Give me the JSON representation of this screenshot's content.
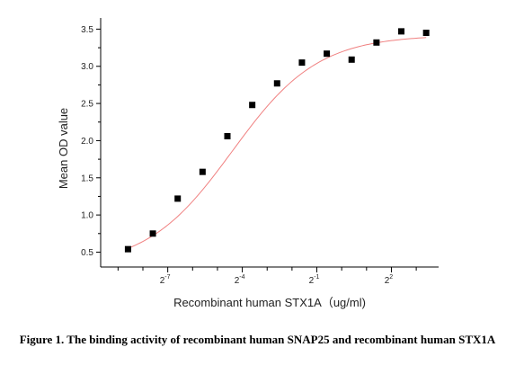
{
  "chart_data": {
    "type": "scatter",
    "ylabel": "Mean OD value",
    "xlabel": "Recombinant human  STX1A（ug/ml)",
    "x_scale": "log2",
    "xlim_log2": [
      -9.7,
      3.9
    ],
    "ylim": [
      0.3,
      3.65
    ],
    "y_ticks": [
      "0.5",
      "1.0",
      "1.5",
      "2.0",
      "2.5",
      "3.0",
      "3.5"
    ],
    "x_tick_labels": [
      {
        "base": "2",
        "exp": "-7"
      },
      {
        "base": "2",
        "exp": "-4"
      },
      {
        "base": "2",
        "exp": "-1"
      },
      {
        "base": "2",
        "exp": "2"
      }
    ],
    "x_log2": [
      -8.6,
      -7.6,
      -6.6,
      -5.6,
      -4.6,
      -3.6,
      -2.6,
      -1.6,
      -0.6,
      0.4,
      1.4,
      2.4,
      3.4
    ],
    "values": [
      0.54,
      0.75,
      1.22,
      1.58,
      2.06,
      2.48,
      2.77,
      3.05,
      3.17,
      3.09,
      3.32,
      3.47,
      3.45
    ],
    "fit_curve": true,
    "marker_color": "#000000",
    "curve_color": "#f08080",
    "caption": "Figure 1. The binding activity of recombinant human SNAP25 and recombinant human STX1A"
  }
}
